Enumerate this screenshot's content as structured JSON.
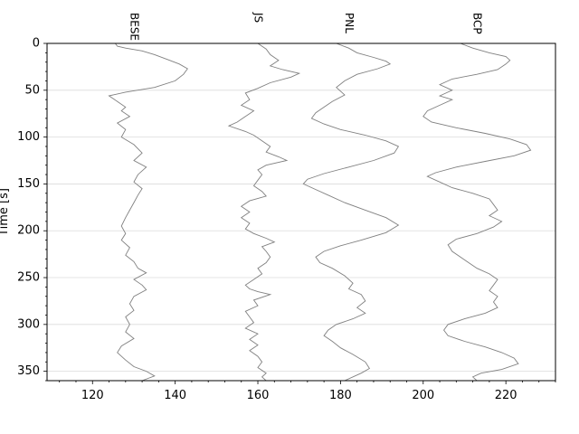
{
  "chart_data": {
    "type": "line",
    "title": "",
    "xlabel": "",
    "ylabel": "Time [s]",
    "xlim": [
      109,
      232
    ],
    "ylim": [
      0,
      360
    ],
    "y_inverted": true,
    "grid": "horizontal",
    "x_ticks": [
      120,
      140,
      160,
      180,
      200,
      220
    ],
    "y_ticks": [
      0,
      50,
      100,
      150,
      200,
      250,
      300,
      350
    ],
    "line_color": "#808080",
    "series": [
      {
        "name": "BESE",
        "label_x": 130,
        "points": [
          [
            125.5,
            0
          ],
          [
            126,
            3
          ],
          [
            128,
            5
          ],
          [
            132,
            8
          ],
          [
            135,
            12
          ],
          [
            138,
            17
          ],
          [
            141,
            22
          ],
          [
            143,
            27
          ],
          [
            142,
            33
          ],
          [
            140,
            40
          ],
          [
            135,
            47
          ],
          [
            128,
            52
          ],
          [
            124,
            56
          ],
          [
            126,
            62
          ],
          [
            128,
            68
          ],
          [
            127,
            72
          ],
          [
            129,
            78
          ],
          [
            126,
            85
          ],
          [
            128,
            92
          ],
          [
            127,
            100
          ],
          [
            130,
            108
          ],
          [
            132,
            117
          ],
          [
            130,
            125
          ],
          [
            133,
            132
          ],
          [
            131,
            140
          ],
          [
            130,
            148
          ],
          [
            132,
            155
          ],
          [
            131,
            162
          ],
          [
            130,
            170
          ],
          [
            129,
            178
          ],
          [
            128,
            186
          ],
          [
            127,
            195
          ],
          [
            128,
            203
          ],
          [
            127,
            210
          ],
          [
            129,
            218
          ],
          [
            128,
            226
          ],
          [
            130,
            233
          ],
          [
            131,
            240
          ],
          [
            133,
            245
          ],
          [
            130,
            252
          ],
          [
            132,
            258
          ],
          [
            133,
            263
          ],
          [
            130,
            270
          ],
          [
            129,
            278
          ],
          [
            130,
            285
          ],
          [
            128,
            292
          ],
          [
            129,
            300
          ],
          [
            128,
            308
          ],
          [
            130,
            315
          ],
          [
            127,
            323
          ],
          [
            126,
            330
          ],
          [
            128,
            338
          ],
          [
            130,
            345
          ],
          [
            133,
            350
          ],
          [
            135,
            355
          ],
          [
            132,
            360
          ]
        ]
      },
      {
        "name": "JS",
        "label_x": 160,
        "points": [
          [
            160,
            0
          ],
          [
            162,
            6
          ],
          [
            163,
            12
          ],
          [
            165,
            18
          ],
          [
            163,
            24
          ],
          [
            166,
            28
          ],
          [
            170,
            32
          ],
          [
            168,
            36
          ],
          [
            163,
            42
          ],
          [
            160,
            48
          ],
          [
            157,
            53
          ],
          [
            158,
            60
          ],
          [
            156,
            66
          ],
          [
            159,
            72
          ],
          [
            157,
            78
          ],
          [
            155,
            84
          ],
          [
            153,
            88
          ],
          [
            157,
            94
          ],
          [
            159,
            98
          ],
          [
            161,
            104
          ],
          [
            163,
            110
          ],
          [
            162,
            116
          ],
          [
            165,
            121
          ],
          [
            167,
            125
          ],
          [
            162,
            130
          ],
          [
            160,
            135
          ],
          [
            161,
            140
          ],
          [
            160,
            146
          ],
          [
            159,
            152
          ],
          [
            161,
            158
          ],
          [
            162,
            163
          ],
          [
            158,
            168
          ],
          [
            156,
            174
          ],
          [
            158,
            180
          ],
          [
            156,
            186
          ],
          [
            158,
            192
          ],
          [
            157,
            198
          ],
          [
            159,
            203
          ],
          [
            162,
            208
          ],
          [
            164,
            212
          ],
          [
            161,
            217
          ],
          [
            162,
            222
          ],
          [
            163,
            228
          ],
          [
            162,
            234
          ],
          [
            160,
            240
          ],
          [
            161,
            246
          ],
          [
            159,
            252
          ],
          [
            157,
            258
          ],
          [
            158,
            262
          ],
          [
            160,
            265
          ],
          [
            163,
            268
          ],
          [
            159,
            274
          ],
          [
            160,
            280
          ],
          [
            157,
            286
          ],
          [
            158,
            292
          ],
          [
            159,
            298
          ],
          [
            157,
            304
          ],
          [
            160,
            310
          ],
          [
            158,
            316
          ],
          [
            160,
            322
          ],
          [
            158,
            328
          ],
          [
            160,
            334
          ],
          [
            161,
            340
          ],
          [
            160,
            346
          ],
          [
            162,
            352
          ],
          [
            161,
            356
          ],
          [
            162,
            360
          ]
        ]
      },
      {
        "name": "PNL",
        "label_x": 182,
        "points": [
          [
            179,
            0
          ],
          [
            182,
            5
          ],
          [
            184,
            10
          ],
          [
            188,
            15
          ],
          [
            191,
            19
          ],
          [
            192,
            22
          ],
          [
            189,
            27
          ],
          [
            184,
            33
          ],
          [
            181,
            40
          ],
          [
            179,
            47
          ],
          [
            181,
            55
          ],
          [
            178,
            62
          ],
          [
            176,
            68
          ],
          [
            174,
            74
          ],
          [
            173,
            80
          ],
          [
            176,
            86
          ],
          [
            180,
            92
          ],
          [
            186,
            98
          ],
          [
            191,
            104
          ],
          [
            194,
            110
          ],
          [
            193,
            117
          ],
          [
            188,
            125
          ],
          [
            182,
            132
          ],
          [
            176,
            139
          ],
          [
            172,
            145
          ],
          [
            171,
            150
          ],
          [
            174,
            156
          ],
          [
            177,
            162
          ],
          [
            181,
            170
          ],
          [
            186,
            178
          ],
          [
            191,
            186
          ],
          [
            194,
            194
          ],
          [
            191,
            202
          ],
          [
            185,
            210
          ],
          [
            180,
            216
          ],
          [
            176,
            222
          ],
          [
            174,
            228
          ],
          [
            175,
            234
          ],
          [
            178,
            240
          ],
          [
            181,
            248
          ],
          [
            183,
            256
          ],
          [
            182,
            262
          ],
          [
            185,
            268
          ],
          [
            186,
            275
          ],
          [
            184,
            282
          ],
          [
            186,
            288
          ],
          [
            183,
            294
          ],
          [
            179,
            300
          ],
          [
            177,
            306
          ],
          [
            176,
            312
          ],
          [
            178,
            318
          ],
          [
            180,
            325
          ],
          [
            183,
            332
          ],
          [
            186,
            340
          ],
          [
            187,
            347
          ],
          [
            185,
            352
          ],
          [
            181,
            360
          ]
        ]
      },
      {
        "name": "BCP",
        "label_x": 213,
        "points": [
          [
            209,
            0
          ],
          [
            212,
            5
          ],
          [
            216,
            10
          ],
          [
            220,
            14
          ],
          [
            221,
            18
          ],
          [
            220,
            22
          ],
          [
            218,
            28
          ],
          [
            213,
            33
          ],
          [
            207,
            38
          ],
          [
            204,
            44
          ],
          [
            207,
            50
          ],
          [
            204,
            56
          ],
          [
            207,
            60
          ],
          [
            204,
            66
          ],
          [
            201,
            72
          ],
          [
            200,
            78
          ],
          [
            202,
            84
          ],
          [
            208,
            90
          ],
          [
            215,
            96
          ],
          [
            221,
            102
          ],
          [
            225,
            108
          ],
          [
            226,
            114
          ],
          [
            222,
            120
          ],
          [
            215,
            126
          ],
          [
            208,
            132
          ],
          [
            203,
            138
          ],
          [
            201,
            142
          ],
          [
            204,
            148
          ],
          [
            207,
            154
          ],
          [
            212,
            160
          ],
          [
            216,
            166
          ],
          [
            217,
            172
          ],
          [
            218,
            178
          ],
          [
            216,
            184
          ],
          [
            219,
            190
          ],
          [
            217,
            196
          ],
          [
            213,
            203
          ],
          [
            208,
            209
          ],
          [
            206,
            215
          ],
          [
            207,
            222
          ],
          [
            209,
            228
          ],
          [
            211,
            234
          ],
          [
            213,
            240
          ],
          [
            216,
            246
          ],
          [
            218,
            252
          ],
          [
            217,
            258
          ],
          [
            216,
            264
          ],
          [
            218,
            270
          ],
          [
            217,
            276
          ],
          [
            218,
            282
          ],
          [
            215,
            288
          ],
          [
            210,
            294
          ],
          [
            206,
            300
          ],
          [
            205,
            306
          ],
          [
            206,
            312
          ],
          [
            210,
            318
          ],
          [
            215,
            324
          ],
          [
            219,
            330
          ],
          [
            222,
            336
          ],
          [
            223,
            342
          ],
          [
            219,
            348
          ],
          [
            214,
            352
          ],
          [
            212,
            356
          ],
          [
            213,
            360
          ]
        ]
      }
    ]
  }
}
